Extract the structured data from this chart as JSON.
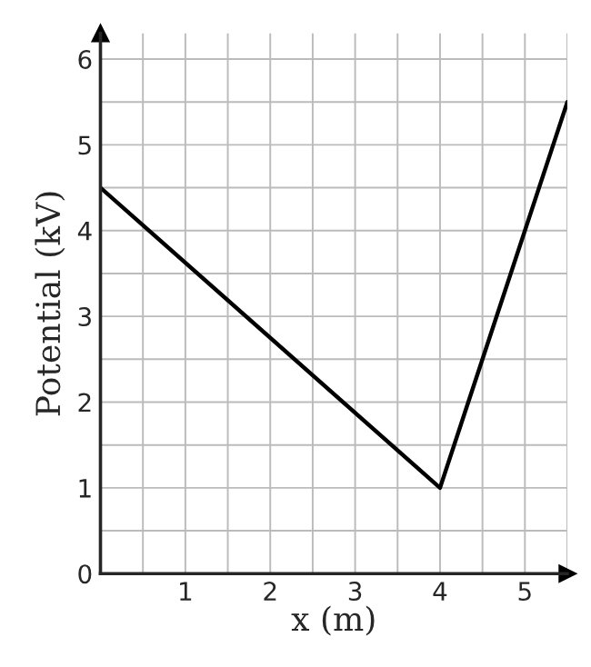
{
  "chart_data": {
    "type": "line",
    "xlabel": "x (m)",
    "ylabel": "Potential (kV)",
    "x": [
      0,
      4,
      5.5
    ],
    "series": [
      {
        "color": "#000000",
        "values": [
          4.5,
          1,
          5.5
        ]
      }
    ],
    "xlim": [
      0,
      5.5
    ],
    "ylim": [
      0,
      6.3
    ],
    "xticks": [
      {
        "value": 0.5,
        "label": null
      },
      1,
      {
        "value": 1.5,
        "label": null
      },
      2,
      {
        "value": 2.5,
        "label": null
      },
      3,
      {
        "value": 3.5,
        "label": null
      },
      4,
      {
        "value": 4.5,
        "label": null
      },
      5,
      {
        "value": 5.5,
        "label": null
      }
    ],
    "yticks": [
      0,
      {
        "value": 0.5,
        "label": null
      },
      1,
      {
        "value": 1.5,
        "label": null
      },
      2,
      {
        "value": 2.5,
        "label": null
      },
      3,
      {
        "value": 3.5,
        "label": null
      },
      4,
      {
        "value": 4.5,
        "label": null
      },
      5,
      {
        "value": 5.5,
        "label": null
      },
      6
    ],
    "grid": true,
    "marker": "none",
    "line_style": "solid"
  }
}
